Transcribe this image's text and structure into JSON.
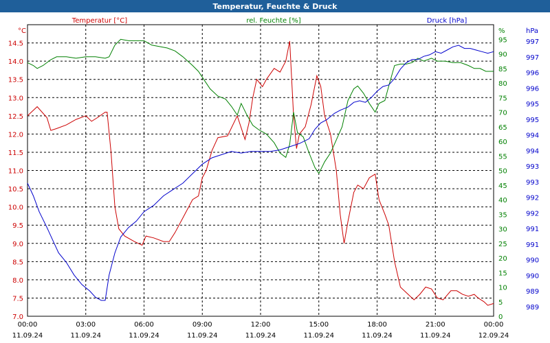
{
  "window": {
    "title": "Temperatur, Feuchte & Druck"
  },
  "colors": {
    "temp": "#cc0000",
    "hum": "#008000",
    "press": "#0000cc",
    "grid": "#000000",
    "titlebar": "#1f5f9a"
  },
  "chart_data": {
    "type": "line",
    "title": "Temperatur, Feuchte & Druck",
    "grid": true,
    "x_ticks": [
      {
        "time": "00:00",
        "date": "11.09.24"
      },
      {
        "time": "03:00",
        "date": "11.09.24"
      },
      {
        "time": "06:00",
        "date": "11.09.24"
      },
      {
        "time": "09:00",
        "date": "11.09.24"
      },
      {
        "time": "12:00",
        "date": "11.09.24"
      },
      {
        "time": "15:00",
        "date": "11.09.24"
      },
      {
        "time": "18:00",
        "date": "11.09.24"
      },
      {
        "time": "21:00",
        "date": "11.09.24"
      },
      {
        "time": "00:00",
        "date": "12.09.24"
      }
    ],
    "x_range": [
      0,
      24
    ],
    "axes": {
      "temp": {
        "label": "Temperatur [°C]",
        "unit": "°C",
        "range": [
          7.0,
          15.0
        ],
        "ticks": [
          "7.0",
          "7.5",
          "8.0",
          "8.5",
          "9.0",
          "9.5",
          "10.0",
          "10.5",
          "11.0",
          "11.5",
          "12.0",
          "12.5",
          "13.0",
          "13.5",
          "14.0",
          "14.5"
        ]
      },
      "hum": {
        "label": "rel. Feuchte [%]",
        "unit": "%",
        "range": [
          0,
          100
        ],
        "ticks": [
          "0",
          "5",
          "10",
          "15",
          "20",
          "25",
          "30",
          "35",
          "40",
          "45",
          "50",
          "55",
          "60",
          "65",
          "70",
          "75",
          "80",
          "85",
          "90",
          "95"
        ]
      },
      "press": {
        "label": "Druck [hPa]",
        "unit": "hPa",
        "range": [
          988.5,
          997.7
        ],
        "ticks": [
          "989",
          "989",
          "990",
          "990",
          "991",
          "991",
          "992",
          "992",
          "993",
          "993",
          "994",
          "994",
          "995",
          "995",
          "996",
          "996",
          "997",
          "997"
        ]
      }
    },
    "series": [
      {
        "name": "Temperatur [°C]",
        "axis": "temp",
        "points": [
          [
            0,
            12.5
          ],
          [
            0.5,
            12.75
          ],
          [
            1,
            12.45
          ],
          [
            1.2,
            12.1
          ],
          [
            1.5,
            12.15
          ],
          [
            2,
            12.25
          ],
          [
            2.5,
            12.4
          ],
          [
            3,
            12.5
          ],
          [
            3.3,
            12.35
          ],
          [
            3.6,
            12.45
          ],
          [
            4,
            12.6
          ],
          [
            4.1,
            12.6
          ],
          [
            4.3,
            11.5
          ],
          [
            4.5,
            10.0
          ],
          [
            4.7,
            9.4
          ],
          [
            5.0,
            9.2
          ],
          [
            5.5,
            9.05
          ],
          [
            5.9,
            8.95
          ],
          [
            6.1,
            9.2
          ],
          [
            6.5,
            9.15
          ],
          [
            7,
            9.05
          ],
          [
            7.3,
            9.05
          ],
          [
            7.6,
            9.3
          ],
          [
            8,
            9.7
          ],
          [
            8.5,
            10.2
          ],
          [
            8.8,
            10.3
          ],
          [
            9.0,
            10.8
          ],
          [
            9.2,
            11.0
          ],
          [
            9.5,
            11.55
          ],
          [
            9.8,
            11.9
          ],
          [
            10.3,
            11.95
          ],
          [
            10.8,
            12.5
          ],
          [
            11.2,
            11.85
          ],
          [
            11.4,
            12.3
          ],
          [
            11.6,
            13.0
          ],
          [
            11.8,
            13.5
          ],
          [
            12.1,
            13.3
          ],
          [
            12.3,
            13.5
          ],
          [
            12.7,
            13.8
          ],
          [
            13.0,
            13.7
          ],
          [
            13.3,
            14.0
          ],
          [
            13.5,
            14.55
          ],
          [
            13.7,
            12.5
          ],
          [
            13.85,
            11.6
          ],
          [
            14.0,
            12.0
          ],
          [
            14.3,
            12.2
          ],
          [
            14.6,
            12.8
          ],
          [
            14.9,
            13.6
          ],
          [
            15.1,
            13.3
          ],
          [
            15.3,
            12.5
          ],
          [
            15.6,
            12.0
          ],
          [
            15.9,
            11.0
          ],
          [
            16.1,
            9.8
          ],
          [
            16.3,
            9.0
          ],
          [
            16.5,
            9.6
          ],
          [
            16.8,
            10.4
          ],
          [
            17.0,
            10.6
          ],
          [
            17.3,
            10.5
          ],
          [
            17.6,
            10.8
          ],
          [
            17.9,
            10.9
          ],
          [
            18.1,
            10.2
          ],
          [
            18.4,
            9.8
          ],
          [
            18.6,
            9.5
          ],
          [
            18.9,
            8.5
          ],
          [
            19.2,
            7.8
          ],
          [
            19.6,
            7.6
          ],
          [
            19.9,
            7.45
          ],
          [
            20.2,
            7.6
          ],
          [
            20.5,
            7.8
          ],
          [
            20.8,
            7.75
          ],
          [
            21.1,
            7.5
          ],
          [
            21.4,
            7.45
          ],
          [
            21.8,
            7.7
          ],
          [
            22.1,
            7.7
          ],
          [
            22.4,
            7.6
          ],
          [
            22.7,
            7.55
          ],
          [
            23.0,
            7.6
          ],
          [
            23.2,
            7.5
          ],
          [
            23.5,
            7.4
          ],
          [
            23.7,
            7.3
          ],
          [
            24.0,
            7.35
          ]
        ]
      },
      {
        "name": "rel. Feuchte [%]",
        "axis": "hum",
        "points": [
          [
            0,
            87
          ],
          [
            0.3,
            86
          ],
          [
            0.5,
            85
          ],
          [
            0.8,
            86
          ],
          [
            1.2,
            88
          ],
          [
            1.5,
            89
          ],
          [
            2,
            89
          ],
          [
            2.5,
            88.5
          ],
          [
            3,
            89
          ],
          [
            3.5,
            89
          ],
          [
            4,
            88.5
          ],
          [
            4.2,
            89
          ],
          [
            4.5,
            93
          ],
          [
            4.8,
            95
          ],
          [
            5.2,
            94.5
          ],
          [
            5.6,
            94.5
          ],
          [
            6,
            94.5
          ],
          [
            6.4,
            93
          ],
          [
            6.8,
            92.5
          ],
          [
            7.2,
            92
          ],
          [
            7.6,
            91
          ],
          [
            8,
            89
          ],
          [
            8.5,
            86
          ],
          [
            8.8,
            84
          ],
          [
            9.1,
            81
          ],
          [
            9.4,
            78
          ],
          [
            9.8,
            75.5
          ],
          [
            10.2,
            74.5
          ],
          [
            10.5,
            72
          ],
          [
            10.8,
            69
          ],
          [
            11.0,
            73
          ],
          [
            11.3,
            69
          ],
          [
            11.6,
            65.5
          ],
          [
            11.9,
            64.0
          ],
          [
            12.3,
            62.5
          ],
          [
            12.7,
            59.5
          ],
          [
            13.0,
            56.0
          ],
          [
            13.3,
            54.5
          ],
          [
            13.5,
            59.0
          ],
          [
            13.7,
            70.0
          ],
          [
            13.9,
            63
          ],
          [
            14.2,
            61.5
          ],
          [
            14.5,
            56.0
          ],
          [
            14.8,
            51.0
          ],
          [
            15.0,
            49.0
          ],
          [
            15.3,
            53.0
          ],
          [
            15.6,
            56.0
          ],
          [
            15.8,
            59
          ],
          [
            16.2,
            65
          ],
          [
            16.5,
            74
          ],
          [
            16.8,
            78
          ],
          [
            17.0,
            79
          ],
          [
            17.3,
            76.5
          ],
          [
            17.6,
            73
          ],
          [
            17.9,
            70
          ],
          [
            18.1,
            73
          ],
          [
            18.4,
            74
          ],
          [
            18.6,
            79
          ],
          [
            18.9,
            86
          ],
          [
            19.2,
            86.5
          ],
          [
            19.5,
            86.5
          ],
          [
            19.8,
            87
          ],
          [
            20.1,
            88.5
          ],
          [
            20.4,
            87.5
          ],
          [
            20.8,
            88.5
          ],
          [
            21.1,
            87.5
          ],
          [
            21.5,
            87.5
          ],
          [
            21.9,
            87.0
          ],
          [
            22.3,
            87.0
          ],
          [
            22.7,
            86.0
          ],
          [
            23.0,
            85.0
          ],
          [
            23.3,
            85.0
          ],
          [
            23.6,
            84.0
          ],
          [
            23.8,
            84.0
          ],
          [
            24.0,
            84.0
          ]
        ]
      },
      {
        "name": "Druck [hPa]",
        "axis": "press",
        "points": [
          [
            0,
            992.7
          ],
          [
            0.3,
            992.3
          ],
          [
            0.6,
            991.8
          ],
          [
            1.0,
            991.3
          ],
          [
            1.3,
            990.9
          ],
          [
            1.6,
            990.5
          ],
          [
            2.0,
            990.2
          ],
          [
            2.4,
            989.8
          ],
          [
            2.8,
            989.5
          ],
          [
            3.2,
            989.3
          ],
          [
            3.5,
            989.1
          ],
          [
            3.8,
            989.0
          ],
          [
            4.0,
            989.0
          ],
          [
            4.2,
            989.8
          ],
          [
            4.5,
            990.5
          ],
          [
            4.8,
            991.0
          ],
          [
            5.2,
            991.3
          ],
          [
            5.6,
            991.5
          ],
          [
            6.0,
            991.8
          ],
          [
            6.5,
            992.0
          ],
          [
            7.0,
            992.3
          ],
          [
            7.5,
            992.5
          ],
          [
            8.0,
            992.7
          ],
          [
            8.5,
            993.0
          ],
          [
            9.0,
            993.3
          ],
          [
            9.5,
            993.5
          ],
          [
            10.0,
            993.6
          ],
          [
            10.5,
            993.7
          ],
          [
            11.0,
            993.65
          ],
          [
            11.5,
            993.7
          ],
          [
            12.0,
            993.7
          ],
          [
            12.5,
            993.7
          ],
          [
            13.0,
            993.75
          ],
          [
            13.5,
            993.85
          ],
          [
            14.0,
            993.95
          ],
          [
            14.5,
            994.1
          ],
          [
            14.8,
            994.4
          ],
          [
            15.1,
            994.6
          ],
          [
            15.4,
            994.7
          ],
          [
            15.8,
            994.9
          ],
          [
            16.1,
            995.0
          ],
          [
            16.5,
            995.1
          ],
          [
            16.8,
            995.25
          ],
          [
            17.1,
            995.3
          ],
          [
            17.4,
            995.25
          ],
          [
            17.7,
            995.4
          ],
          [
            18.0,
            995.6
          ],
          [
            18.3,
            995.75
          ],
          [
            18.6,
            995.8
          ],
          [
            18.9,
            996.0
          ],
          [
            19.2,
            996.3
          ],
          [
            19.5,
            996.5
          ],
          [
            19.8,
            996.6
          ],
          [
            20.1,
            996.6
          ],
          [
            20.4,
            996.7
          ],
          [
            20.7,
            996.75
          ],
          [
            21.0,
            996.85
          ],
          [
            21.3,
            996.8
          ],
          [
            21.6,
            996.9
          ],
          [
            21.9,
            997.0
          ],
          [
            22.2,
            997.05
          ],
          [
            22.5,
            996.95
          ],
          [
            22.8,
            996.95
          ],
          [
            23.1,
            996.9
          ],
          [
            23.4,
            996.85
          ],
          [
            23.7,
            996.8
          ],
          [
            24.0,
            996.85
          ]
        ]
      }
    ]
  }
}
